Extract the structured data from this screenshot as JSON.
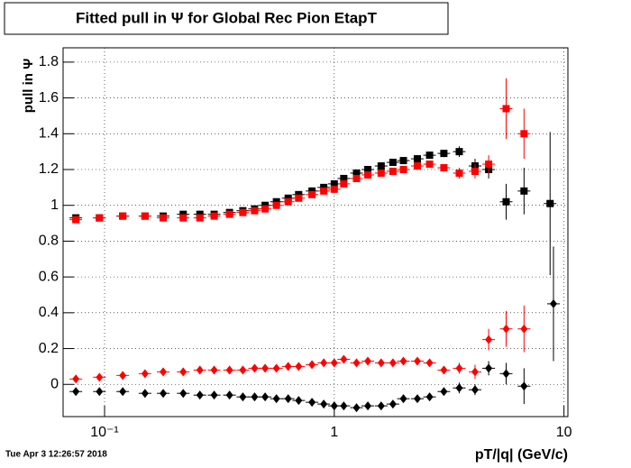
{
  "chart_data": {
    "type": "scatter",
    "title": "Fitted pull in  Ψ  for Global Rec Pion EtapT",
    "y_label": "pull in  Ψ",
    "x_label": "pT/|q| (GeV/c)",
    "timestamp": "Tue Apr  3 12:26:57 2018",
    "log_x": true,
    "grid": true,
    "xlim": [
      0.066,
      10.4
    ],
    "xticks": [
      {
        "value": 0.1,
        "label": "10⁻¹"
      },
      1,
      10
    ],
    "ylim": [
      -0.18,
      1.88
    ],
    "yticks": [
      0,
      0.2,
      0.4,
      0.6,
      0.8,
      1,
      1.2,
      1.4,
      1.6,
      1.8
    ],
    "series": [
      {
        "color": "#000000",
        "marker": "square",
        "x": [
          0.075,
          0.095,
          0.12,
          0.15,
          0.18,
          0.22,
          0.26,
          0.3,
          0.35,
          0.4,
          0.45,
          0.5,
          0.56,
          0.63,
          0.7,
          0.8,
          0.9,
          1.0,
          1.1,
          1.25,
          1.4,
          1.6,
          1.8,
          2.0,
          2.3,
          2.6,
          3.0,
          3.5,
          4.1,
          4.7,
          5.6,
          6.7,
          8.7
        ],
        "values": [
          0.93,
          0.93,
          0.94,
          0.94,
          0.94,
          0.95,
          0.95,
          0.95,
          0.96,
          0.97,
          0.98,
          1.0,
          1.02,
          1.04,
          1.06,
          1.08,
          1.1,
          1.12,
          1.15,
          1.18,
          1.2,
          1.22,
          1.24,
          1.25,
          1.26,
          1.28,
          1.29,
          1.3,
          1.22,
          1.2,
          1.02,
          1.08,
          1.01
        ],
        "errors": [
          0.01,
          0.01,
          0.01,
          0.01,
          0.01,
          0.01,
          0.01,
          0.01,
          0.01,
          0.01,
          0.01,
          0.01,
          0.01,
          0.01,
          0.01,
          0.01,
          0.01,
          0.01,
          0.01,
          0.01,
          0.01,
          0.01,
          0.01,
          0.01,
          0.02,
          0.02,
          0.02,
          0.03,
          0.04,
          0.05,
          0.1,
          0.13,
          0.4
        ]
      },
      {
        "color": "#ff0000",
        "marker": "square",
        "x": [
          0.075,
          0.095,
          0.12,
          0.15,
          0.18,
          0.22,
          0.26,
          0.3,
          0.35,
          0.4,
          0.45,
          0.5,
          0.56,
          0.63,
          0.7,
          0.8,
          0.9,
          1.0,
          1.1,
          1.25,
          1.4,
          1.6,
          1.8,
          2.0,
          2.3,
          2.6,
          3.0,
          3.5,
          4.1,
          4.7,
          5.6,
          6.7
        ],
        "values": [
          0.92,
          0.93,
          0.94,
          0.94,
          0.93,
          0.93,
          0.93,
          0.94,
          0.95,
          0.96,
          0.97,
          0.98,
          1.0,
          1.02,
          1.04,
          1.06,
          1.08,
          1.09,
          1.12,
          1.15,
          1.17,
          1.18,
          1.19,
          1.2,
          1.22,
          1.23,
          1.21,
          1.18,
          1.19,
          1.23,
          1.54,
          1.4
        ],
        "errors": [
          0.01,
          0.01,
          0.01,
          0.01,
          0.01,
          0.01,
          0.01,
          0.01,
          0.01,
          0.01,
          0.01,
          0.01,
          0.01,
          0.01,
          0.01,
          0.01,
          0.01,
          0.01,
          0.01,
          0.01,
          0.01,
          0.01,
          0.01,
          0.01,
          0.02,
          0.02,
          0.02,
          0.03,
          0.04,
          0.05,
          0.17,
          0.14
        ]
      },
      {
        "color": "#ff0000",
        "marker": "diamond",
        "x": [
          0.075,
          0.095,
          0.12,
          0.15,
          0.18,
          0.22,
          0.26,
          0.3,
          0.35,
          0.4,
          0.45,
          0.5,
          0.56,
          0.63,
          0.7,
          0.8,
          0.9,
          1.0,
          1.1,
          1.25,
          1.4,
          1.6,
          1.8,
          2.0,
          2.3,
          2.6,
          3.0,
          3.5,
          4.1,
          4.7,
          5.6,
          6.7
        ],
        "values": [
          0.03,
          0.04,
          0.05,
          0.06,
          0.07,
          0.07,
          0.08,
          0.08,
          0.08,
          0.08,
          0.09,
          0.09,
          0.09,
          0.1,
          0.1,
          0.11,
          0.12,
          0.12,
          0.14,
          0.12,
          0.13,
          0.12,
          0.12,
          0.13,
          0.13,
          0.12,
          0.08,
          0.09,
          0.07,
          0.25,
          0.31,
          0.31
        ],
        "errors": [
          0.01,
          0.01,
          0.01,
          0.01,
          0.01,
          0.01,
          0.01,
          0.01,
          0.01,
          0.01,
          0.01,
          0.01,
          0.01,
          0.01,
          0.01,
          0.01,
          0.01,
          0.01,
          0.01,
          0.01,
          0.01,
          0.01,
          0.01,
          0.01,
          0.01,
          0.02,
          0.02,
          0.03,
          0.04,
          0.06,
          0.1,
          0.13
        ]
      },
      {
        "color": "#000000",
        "marker": "diamond",
        "x": [
          0.075,
          0.095,
          0.12,
          0.15,
          0.18,
          0.22,
          0.26,
          0.3,
          0.35,
          0.4,
          0.45,
          0.5,
          0.56,
          0.63,
          0.7,
          0.8,
          0.9,
          1.0,
          1.1,
          1.25,
          1.4,
          1.6,
          1.8,
          2.0,
          2.3,
          2.6,
          3.0,
          3.5,
          4.1,
          4.7,
          5.6,
          6.7,
          9.0
        ],
        "values": [
          -0.04,
          -0.04,
          -0.04,
          -0.05,
          -0.05,
          -0.05,
          -0.06,
          -0.06,
          -0.06,
          -0.07,
          -0.07,
          -0.07,
          -0.08,
          -0.08,
          -0.09,
          -0.1,
          -0.11,
          -0.12,
          -0.12,
          -0.13,
          -0.12,
          -0.12,
          -0.11,
          -0.08,
          -0.08,
          -0.07,
          -0.04,
          -0.02,
          -0.03,
          0.09,
          0.06,
          -0.01,
          0.45
        ],
        "errors": [
          0.01,
          0.01,
          0.01,
          0.01,
          0.01,
          0.01,
          0.01,
          0.01,
          0.01,
          0.01,
          0.01,
          0.01,
          0.01,
          0.01,
          0.01,
          0.01,
          0.01,
          0.01,
          0.01,
          0.01,
          0.01,
          0.01,
          0.01,
          0.01,
          0.01,
          0.02,
          0.02,
          0.03,
          0.03,
          0.04,
          0.06,
          0.1,
          0.32
        ]
      }
    ]
  }
}
